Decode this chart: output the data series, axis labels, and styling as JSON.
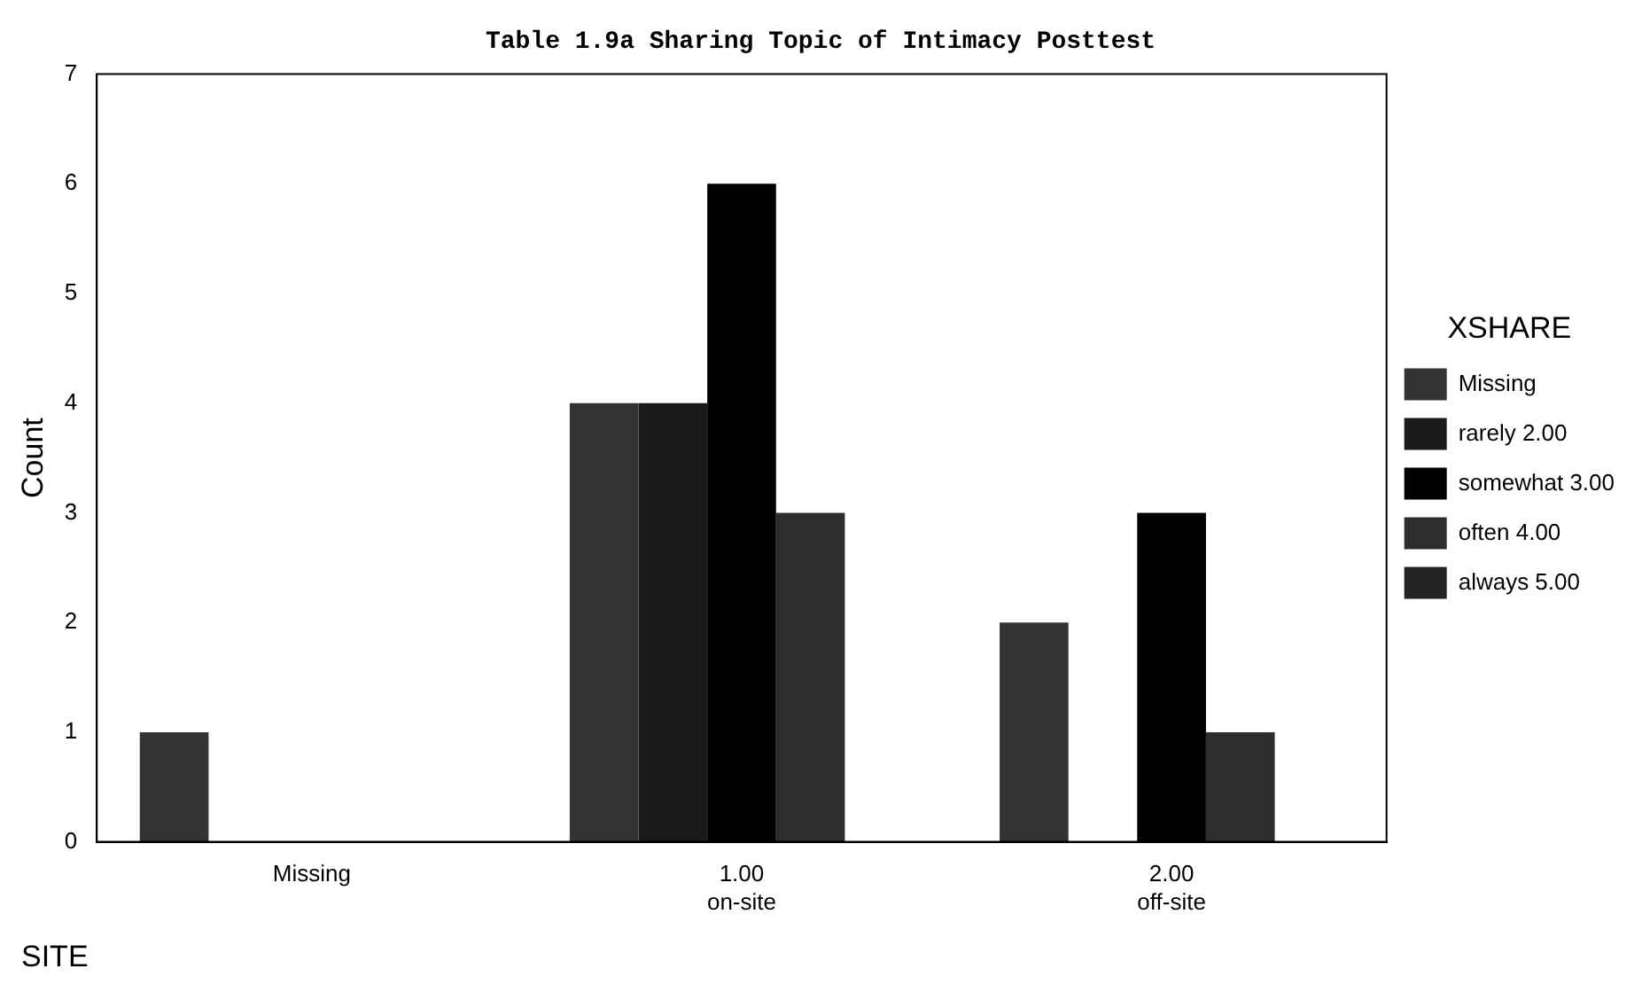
{
  "chart_data": {
    "type": "bar",
    "title": "Table 1.9a Sharing Topic of Intimacy Posttest",
    "xlabel": "SITE",
    "ylabel": "Count",
    "legend_title": "XSHARE",
    "categories": [
      "Missing",
      "1.00\non-site",
      "2.00\noff-site"
    ],
    "series": [
      {
        "name": "Missing",
        "color": "#333333",
        "values": [
          1,
          4,
          2
        ]
      },
      {
        "name": "rarely\n2.00",
        "color": "#1a1a1a",
        "values": [
          0,
          4,
          0
        ]
      },
      {
        "name": "somewhat\n3.00",
        "color": "#000000",
        "values": [
          0,
          6,
          3
        ]
      },
      {
        "name": "often\n4.00",
        "color": "#2e2e2e",
        "values": [
          0,
          3,
          1
        ]
      },
      {
        "name": "always\n5.00",
        "color": "#242424",
        "values": [
          0,
          0,
          0
        ]
      }
    ],
    "ylim": [
      0,
      7
    ],
    "yticks": [
      0,
      1,
      2,
      3,
      4,
      5,
      6,
      7
    ],
    "grid": false,
    "legend": "right"
  }
}
